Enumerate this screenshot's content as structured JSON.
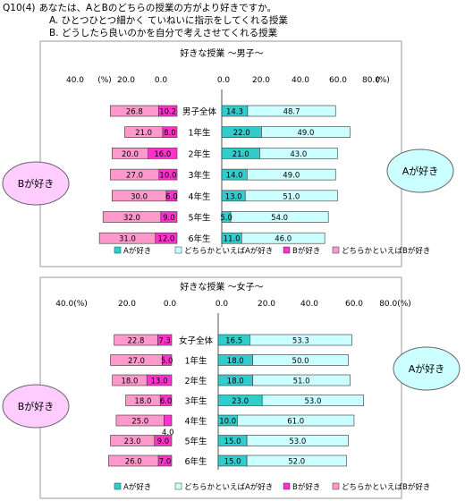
{
  "header": {
    "question_no": "Q10(4)",
    "question": "あなたは、AとBのどちらの授業の方がより好きですか。",
    "option_a": "A. ひとつひとつ細かく ていねいに指示をしてくれる授業",
    "option_b": "B. どうしたら良いのかを自分で考えさせてくれる授業"
  },
  "colors": {
    "a": "#33cccc",
    "a_lean": "#ccffff",
    "b": "#ff33cc",
    "b_lean": "#ff99cc",
    "panel_border": "#999999",
    "bubble_b_fill": "#ffccff",
    "bubble_a_fill": "#ccffff"
  },
  "chart_data": [
    {
      "type": "bar",
      "title": "好きな授業 〜男子〜",
      "left_ticks": [
        "40.0",
        "(%)",
        "20.0",
        "0.0"
      ],
      "right_ticks": [
        "0.0",
        "20.0",
        "40.0",
        "60.0",
        "80.0",
        "(%)"
      ],
      "categories": [
        "男子全体",
        "1年生",
        "2年生",
        "3年生",
        "4年生",
        "5年生",
        "6年生"
      ],
      "series": [
        {
          "name": "Aが好き",
          "values": [
            14.3,
            22.0,
            21.0,
            14.0,
            13.0,
            5.0,
            11.0
          ]
        },
        {
          "name": "どちらかといえばAが好き",
          "values": [
            48.7,
            49.0,
            43.0,
            49.0,
            51.0,
            54.0,
            46.0
          ]
        },
        {
          "name": "Bが好き",
          "values": [
            10.2,
            8.0,
            16.0,
            10.0,
            6.0,
            9.0,
            12.0
          ]
        },
        {
          "name": "どちらかといえばBが好き",
          "values": [
            26.8,
            21.0,
            20.0,
            27.0,
            30.0,
            32.0,
            31.0
          ]
        }
      ],
      "value_labels_a": [
        "14.3",
        "22.0",
        "21.0",
        "14.0",
        "13.0",
        "5.0",
        "11.0"
      ],
      "value_labels_a_lean": [
        "48.7",
        "49.0",
        "43.0",
        "49.0",
        "51.0",
        "54.0",
        "46.0"
      ],
      "value_labels_b": [
        "10.2",
        "8.0",
        "16.0",
        "10.0",
        "6.0",
        "9.0",
        "12.0"
      ],
      "value_labels_b_lean": [
        "26.8",
        "21.0",
        "20.0",
        "27.0",
        "30.0",
        "32.0",
        "31.0"
      ],
      "left_xlim": [
        0,
        40
      ],
      "right_xlim": [
        0,
        80
      ],
      "bubble_b": "Bが好き",
      "bubble_a": "Aが好き",
      "legend": [
        "Aが好き",
        "どちらかといえばAが好き",
        "Bが好き",
        "どちらかといえばBが好き"
      ],
      "legend_position": "bottom"
    },
    {
      "type": "bar",
      "title": "好きな授業 〜女子〜",
      "left_ticks": [
        "40.0(%)",
        "20.0",
        "0.0"
      ],
      "right_ticks": [
        "0.0",
        "20.0",
        "40.0",
        "60.0",
        "80.0(%)"
      ],
      "categories": [
        "女子全体",
        "1年生",
        "2年生",
        "3年生",
        "4年生",
        "5年生",
        "6年生"
      ],
      "series": [
        {
          "name": "Aが好き",
          "values": [
            16.5,
            18.0,
            18.0,
            23.0,
            10.0,
            15.0,
            15.0
          ]
        },
        {
          "name": "どちらかといえばAが好き",
          "values": [
            53.3,
            50.0,
            51.0,
            53.0,
            61.0,
            53.0,
            52.0
          ]
        },
        {
          "name": "Bが好き",
          "values": [
            7.3,
            5.0,
            13.0,
            6.0,
            4.0,
            9.0,
            7.0
          ]
        },
        {
          "name": "どちらかといえばBが好き",
          "values": [
            22.8,
            27.0,
            18.0,
            18.0,
            25.0,
            23.0,
            26.0
          ]
        }
      ],
      "value_labels_a": [
        "16.5",
        "18.0",
        "18.0",
        "23.0",
        "10.0",
        "15.0",
        "15.0"
      ],
      "value_labels_a_lean": [
        "53.3",
        "50.0",
        "51.0",
        "53.0",
        "61.0",
        "53.0",
        "52.0"
      ],
      "value_labels_b": [
        "7.3",
        "5.0",
        "13.0",
        "6.0",
        "4.0",
        "9.0",
        "7.0"
      ],
      "value_labels_b_lean": [
        "22.8",
        "27.0",
        "18.0",
        "18.0",
        "25.0",
        "23.0",
        "26.0"
      ],
      "left_xlim": [
        0,
        40
      ],
      "right_xlim": [
        0,
        80
      ],
      "bubble_b": "Bが好き",
      "bubble_a": "Aが好き",
      "legend": [
        "Aが好き",
        "どちらかといえばAが好き",
        "Bが好き",
        "どちらかといえばBが好き"
      ],
      "legend_position": "bottom"
    }
  ]
}
